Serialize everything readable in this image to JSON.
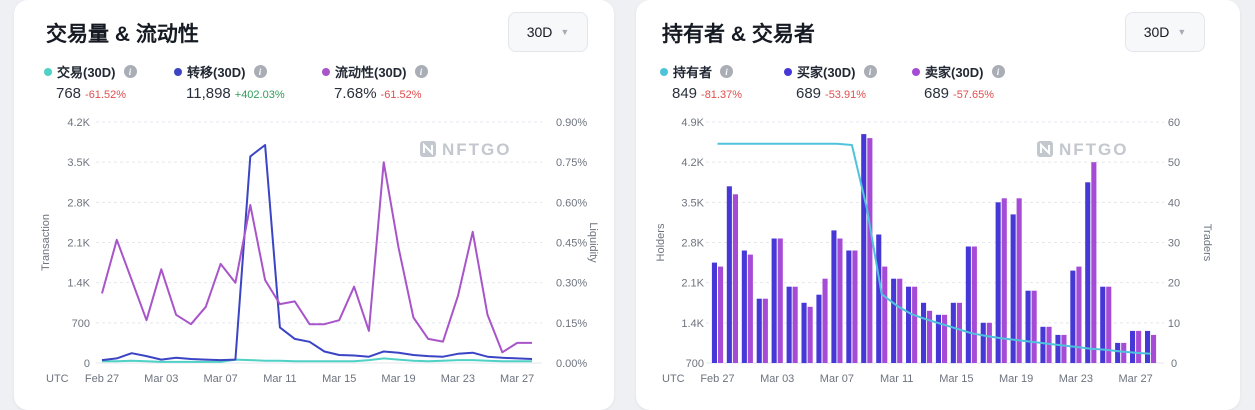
{
  "colors": {
    "transaction": "#4fd1c5",
    "transfer": "#3b44c4",
    "liquidity": "#a855c9",
    "holders": "#4fc3dc",
    "buyers": "#4638d6",
    "sellers": "#a64bd6",
    "negative": "#e24d4d",
    "positive": "#2e9d5a",
    "grid": "#e4e7ec"
  },
  "left_card": {
    "title": "交易量 & 流动性",
    "range": "30D",
    "stats": [
      {
        "label": "交易(30D)",
        "value": "768",
        "change": "-61.52%",
        "trend": "negative",
        "color_key": "transaction"
      },
      {
        "label": "转移(30D)",
        "value": "11,898",
        "change": "+402.03%",
        "trend": "positive",
        "color_key": "transfer"
      },
      {
        "label": "流动性(30D)",
        "value": "7.68%",
        "change": "-61.52%",
        "trend": "negative",
        "color_key": "liquidity"
      }
    ]
  },
  "right_card": {
    "title": "持有者 & 交易者",
    "range": "30D",
    "stats": [
      {
        "label": "持有者",
        "value": "849",
        "change": "-81.37%",
        "trend": "negative",
        "color_key": "holders"
      },
      {
        "label": "买家(30D)",
        "value": "689",
        "change": "-53.91%",
        "trend": "negative",
        "color_key": "buyers"
      },
      {
        "label": "卖家(30D)",
        "value": "689",
        "change": "-57.65%",
        "trend": "negative",
        "color_key": "sellers"
      }
    ]
  },
  "watermark": "NFTGO",
  "chart_data": [
    {
      "type": "line",
      "x_prefix": "UTC",
      "x_tick_labels": [
        "Feb 27",
        "Mar 03",
        "Mar 07",
        "Mar 11",
        "Mar 15",
        "Mar 19",
        "Mar 23",
        "Mar 27"
      ],
      "ylabel": "Transaction",
      "ylim": [
        0,
        4200
      ],
      "y_ticks": [
        "0",
        "700",
        "1.4K",
        "2.1K",
        "2.8K",
        "3.5K",
        "4.2K"
      ],
      "y2label": "Liquidity",
      "y2lim": [
        0,
        0.9
      ],
      "y2_ticks": [
        "0.00%",
        "0.15%",
        "0.30%",
        "0.45%",
        "0.60%",
        "0.75%",
        "0.90%"
      ],
      "grid": true,
      "series": [
        {
          "key": "transaction",
          "axis": "left",
          "values": [
            30,
            30,
            40,
            30,
            20,
            20,
            20,
            20,
            20,
            60,
            50,
            40,
            40,
            30,
            30,
            30,
            30,
            30,
            50,
            80,
            60,
            40,
            30,
            40,
            50,
            50,
            40,
            30,
            30,
            30
          ]
        },
        {
          "key": "transfer",
          "axis": "left",
          "values": [
            50,
            80,
            170,
            120,
            60,
            90,
            70,
            60,
            50,
            60,
            3600,
            3800,
            620,
            420,
            370,
            200,
            140,
            130,
            110,
            200,
            180,
            140,
            120,
            110,
            160,
            180,
            110,
            90,
            80,
            70
          ]
        },
        {
          "key": "liquidity",
          "axis": "right",
          "values": [
            0.26,
            0.46,
            0.31,
            0.16,
            0.35,
            0.18,
            0.145,
            0.21,
            0.37,
            0.3,
            0.59,
            0.31,
            0.22,
            0.23,
            0.145,
            0.145,
            0.16,
            0.285,
            0.12,
            0.75,
            0.43,
            0.17,
            0.09,
            0.08,
            0.25,
            0.49,
            0.18,
            0.04,
            0.075,
            0.075
          ]
        }
      ]
    },
    {
      "type": "bar",
      "x_prefix": "UTC",
      "x_tick_labels": [
        "Feb 27",
        "Mar 03",
        "Mar 07",
        "Mar 11",
        "Mar 15",
        "Mar 19",
        "Mar 23",
        "Mar 27"
      ],
      "ylabel": "Holders",
      "ylim": [
        700,
        4900
      ],
      "y_ticks": [
        "700",
        "1.4K",
        "2.1K",
        "2.8K",
        "3.5K",
        "4.2K",
        "4.9K"
      ],
      "y2label": "Traders",
      "y2lim": [
        0,
        60
      ],
      "y2_ticks": [
        "0",
        "10",
        "20",
        "30",
        "40",
        "50",
        "60"
      ],
      "grid": true,
      "series": [
        {
          "key": "buyers",
          "axis": "right",
          "values": [
            25,
            44,
            28,
            16,
            31,
            19,
            15,
            17,
            33,
            28,
            57,
            32,
            21,
            19,
            15,
            12,
            15,
            29,
            10,
            40,
            37,
            18,
            9,
            7,
            23,
            45,
            19,
            5,
            8,
            8
          ]
        },
        {
          "key": "sellers",
          "axis": "right",
          "values": [
            24,
            42,
            27,
            16,
            31,
            19,
            14,
            21,
            31,
            28,
            56,
            24,
            21,
            19,
            13,
            12,
            15,
            29,
            10,
            41,
            41,
            18,
            9,
            7,
            24,
            50,
            19,
            5,
            8,
            7
          ]
        },
        {
          "key": "holders",
          "axis": "left",
          "type": "line",
          "values": [
            4520,
            4520,
            4520,
            4520,
            4520,
            4520,
            4520,
            4520,
            4520,
            4500,
            3400,
            1900,
            1700,
            1550,
            1460,
            1380,
            1300,
            1220,
            1170,
            1130,
            1100,
            1070,
            1040,
            1010,
            980,
            950,
            930,
            900,
            880,
            860
          ]
        }
      ]
    }
  ]
}
